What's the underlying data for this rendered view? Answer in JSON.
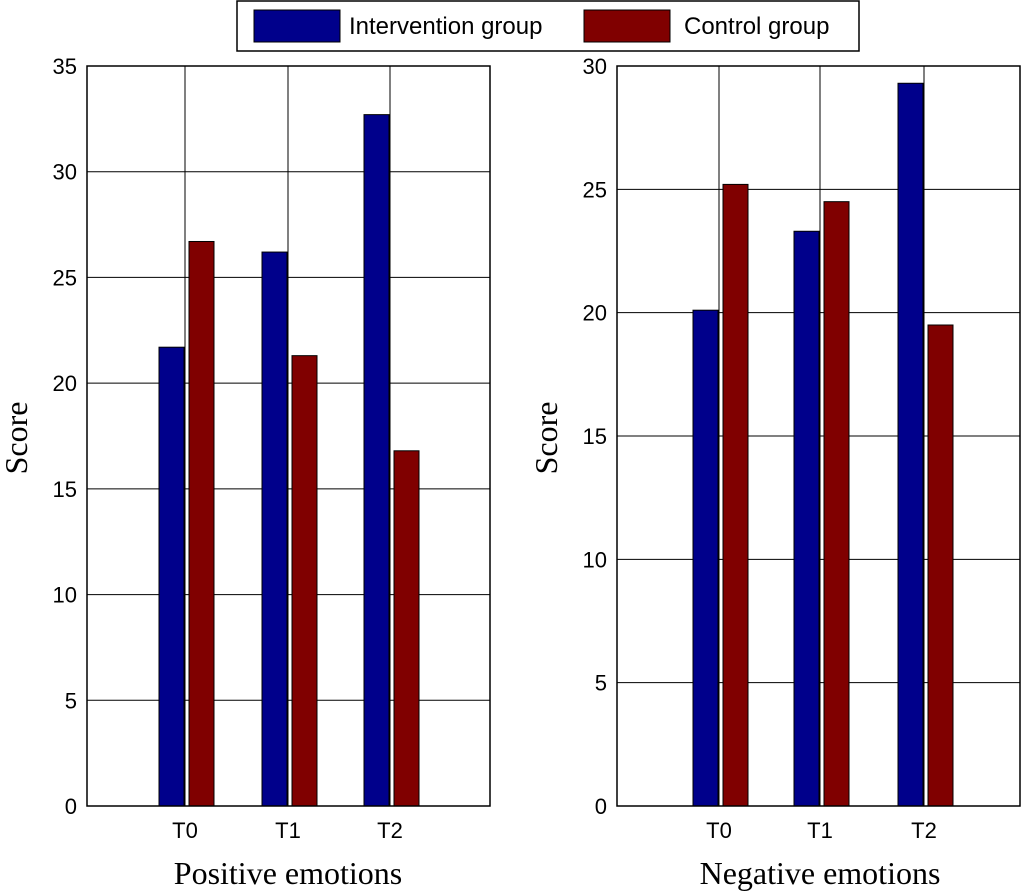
{
  "legend": {
    "entries": [
      {
        "label": "Intervention group",
        "color": "#00008B"
      },
      {
        "label": "Control group",
        "color": "#800000"
      }
    ]
  },
  "chart_data": [
    {
      "type": "bar",
      "title": "",
      "xlabel": "Positive emotions",
      "ylabel": "Score",
      "categories": [
        "T0",
        "T1",
        "T2"
      ],
      "ylim": [
        0,
        35
      ],
      "yticks": [
        0,
        5,
        10,
        15,
        20,
        25,
        30,
        35
      ],
      "grid": true,
      "series": [
        {
          "name": "Intervention group",
          "color": "#00008B",
          "values": [
            21.7,
            26.2,
            32.7
          ]
        },
        {
          "name": "Control group",
          "color": "#800000",
          "values": [
            26.7,
            21.3,
            16.8
          ]
        }
      ]
    },
    {
      "type": "bar",
      "title": "",
      "xlabel": "Negative emotions",
      "ylabel": "Score",
      "categories": [
        "T0",
        "T1",
        "T2"
      ],
      "ylim": [
        0,
        30
      ],
      "yticks": [
        0,
        5,
        10,
        15,
        20,
        25,
        30
      ],
      "grid": true,
      "series": [
        {
          "name": "Intervention group",
          "color": "#00008B",
          "values": [
            20.1,
            23.3,
            29.3
          ]
        },
        {
          "name": "Control group",
          "color": "#800000",
          "values": [
            25.2,
            24.5,
            19.5
          ]
        }
      ]
    }
  ]
}
